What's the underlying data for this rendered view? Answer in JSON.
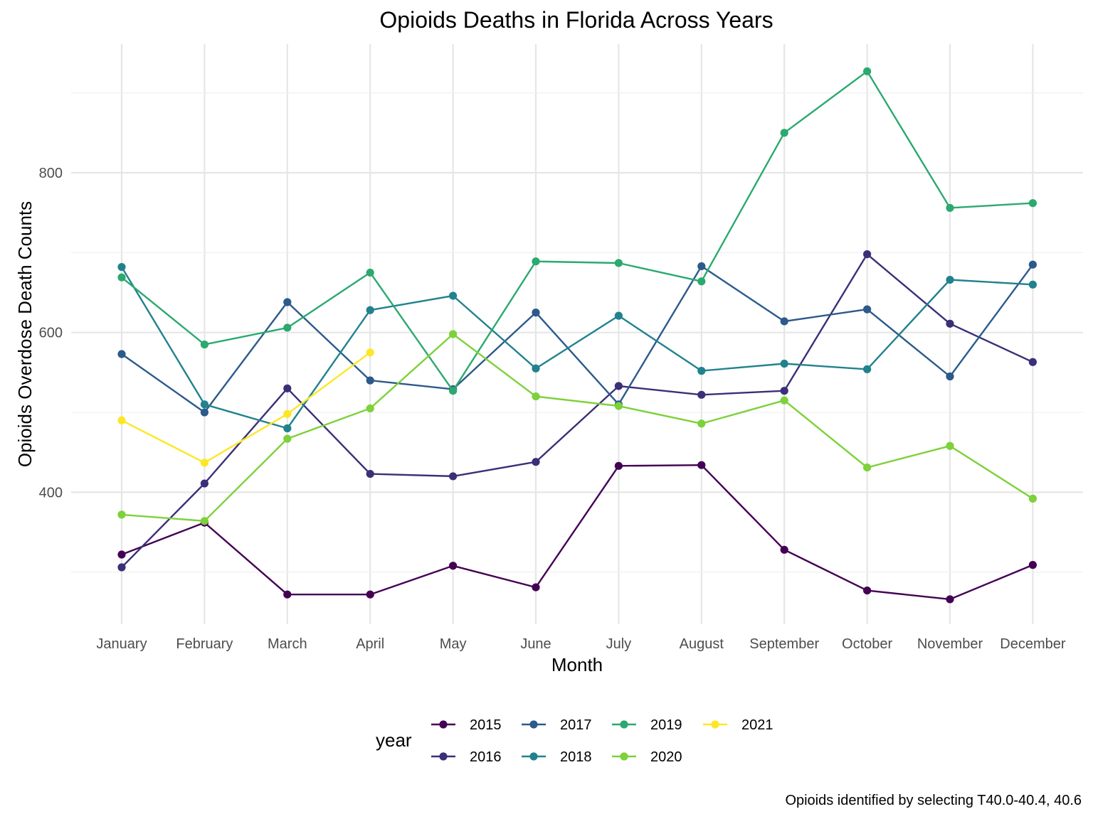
{
  "chart_data": {
    "type": "line",
    "title": "Opioids Deaths in Florida Across Years",
    "xlabel": "Month",
    "ylabel": "Opioids Overdose Death Counts",
    "caption": "Opioids identified by selecting T40.0-40.4, 40.6",
    "legend_title": "year",
    "legend_position": "bottom",
    "grid": true,
    "ylim": [
      240,
      960
    ],
    "y_ticks": [
      400,
      600,
      800
    ],
    "y_tick_labels": [
      "400",
      "600",
      "800"
    ],
    "categories": [
      "January",
      "February",
      "March",
      "April",
      "May",
      "June",
      "July",
      "August",
      "September",
      "October",
      "November",
      "December"
    ],
    "series": [
      {
        "name": "2015",
        "color": "#440154",
        "values": [
          322,
          362,
          272,
          272,
          308,
          281,
          433,
          434,
          328,
          277,
          266,
          309
        ]
      },
      {
        "name": "2016",
        "color": "#3B2F77",
        "values": [
          306,
          411,
          530,
          423,
          420,
          438,
          533,
          522,
          527,
          698,
          611,
          563
        ]
      },
      {
        "name": "2017",
        "color": "#2C5A8A",
        "values": [
          573,
          500,
          638,
          540,
          529,
          625,
          510,
          683,
          614,
          629,
          545,
          685
        ]
      },
      {
        "name": "2018",
        "color": "#21828E",
        "values": [
          682,
          510,
          480,
          628,
          646,
          555,
          621,
          552,
          561,
          554,
          666,
          660
        ]
      },
      {
        "name": "2019",
        "color": "#2BA96F",
        "values": [
          669,
          585,
          606,
          675,
          527,
          689,
          687,
          664,
          850,
          927,
          756,
          762
        ]
      },
      {
        "name": "2020",
        "color": "#7DD13A",
        "values": [
          372,
          364,
          467,
          505,
          598,
          520,
          508,
          486,
          515,
          431,
          458,
          392
        ]
      },
      {
        "name": "2021",
        "color": "#FDE725",
        "values": [
          490,
          437,
          498,
          575,
          null,
          null,
          null,
          null,
          null,
          null,
          null,
          null
        ]
      }
    ]
  }
}
